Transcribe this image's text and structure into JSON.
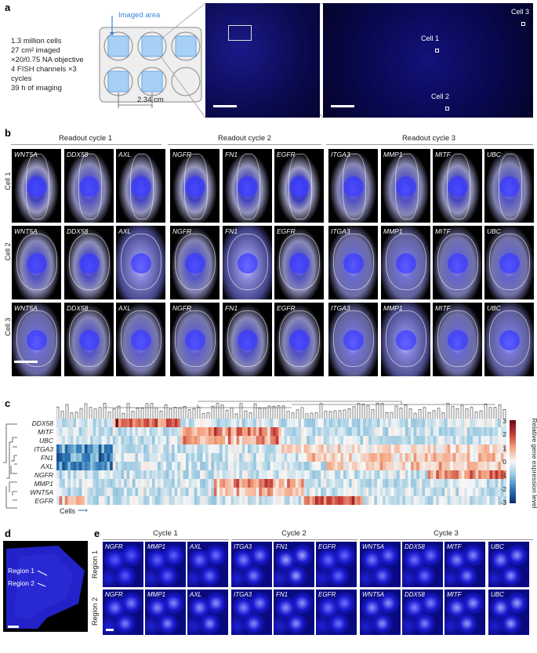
{
  "panel_a": {
    "label": "a",
    "stats": [
      "1.3 million cells",
      "27 cm² imaged",
      "×20/0.75 NA objective",
      "4 FISH channels ×3 cycles",
      "39 h of imaging"
    ],
    "imaged_area": "Imaged area",
    "distance": "2.34 cm",
    "cells": [
      "Cell 1",
      "Cell 2",
      "Cell 3"
    ]
  },
  "panel_b": {
    "label": "b",
    "cycles": [
      "Readout cycle 1",
      "Readout cycle 2",
      "Readout cycle 3"
    ],
    "genes": [
      "WNT5A",
      "DDX58",
      "AXL",
      "NGFR",
      "FN1",
      "EGFR",
      "ITGA3",
      "MMP1",
      "MITF",
      "UBC"
    ],
    "rows": [
      "Cell 1",
      "Cell 2",
      "Cell 3"
    ]
  },
  "panel_c": {
    "label": "c",
    "genes": [
      "DDX58",
      "MITF",
      "UBC",
      "ITGA3",
      "FN1",
      "AXL",
      "NGFR",
      "MMP1",
      "WNT5A",
      "EGFR"
    ],
    "xlabel": "Cells",
    "colorbar_label": "Relative gene expression level",
    "colorbar_ticks": [
      "3",
      "2",
      "1",
      "0",
      "-1",
      "-2",
      "-3"
    ],
    "colors": {
      "high": "#7a0a1e",
      "mid": "#f7f7f7",
      "low": "#0a3c7a"
    }
  },
  "panel_d": {
    "label": "d",
    "regions": [
      "Region 1",
      "Region 2"
    ]
  },
  "panel_e": {
    "label": "e",
    "cycles": [
      "Cycle 1",
      "Cycle 2",
      "Cycle 3"
    ],
    "genes": [
      "NGFR",
      "MMP1",
      "AXL",
      "ITGA3",
      "FN1",
      "EGFR",
      "WNT5A",
      "DDX58",
      "MITF",
      "UBC"
    ],
    "rows": [
      "Region 1",
      "Region 2"
    ]
  }
}
